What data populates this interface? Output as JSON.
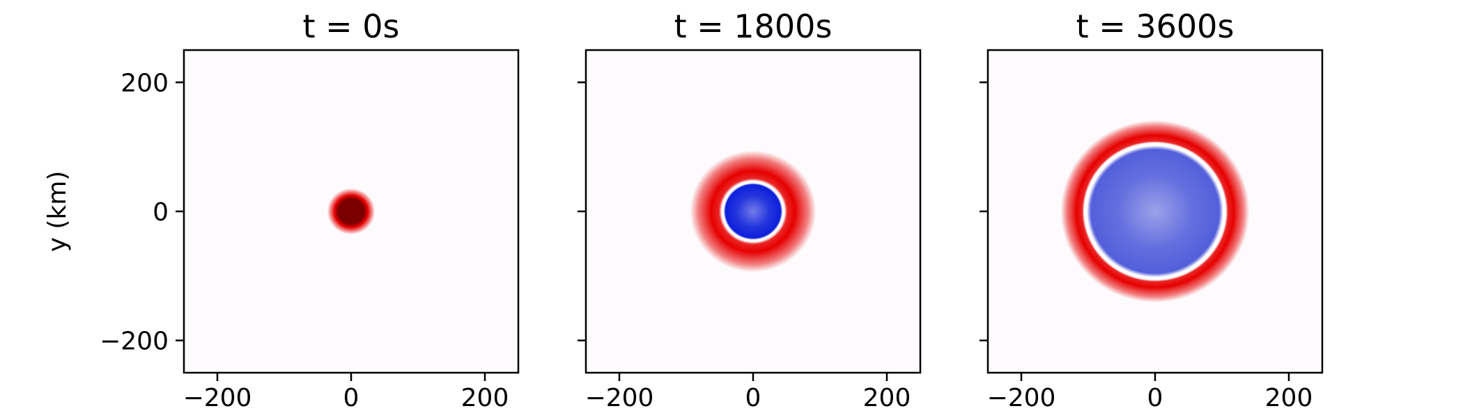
{
  "chart_data": [
    {
      "type": "heatmap",
      "title": "t = 0s",
      "ylabel": "y (km)",
      "xlim": [
        -250,
        250
      ],
      "ylim": [
        -250,
        250
      ],
      "xticks": [
        -200,
        0,
        200
      ],
      "yticks": [
        -200,
        0,
        200
      ],
      "xtick_labels": [
        "−200",
        "0",
        "200"
      ],
      "ytick_labels": [
        "200",
        "0",
        "−200"
      ],
      "show_ytick_labels": true,
      "center": [
        0,
        0
      ],
      "rings": [
        {
          "inner_radius_km": 0,
          "outer_radius_km": 32,
          "sign": "positive",
          "peak_color": "#7a0000"
        }
      ]
    },
    {
      "type": "heatmap",
      "title": "t = 1800s",
      "xlim": [
        -250,
        250
      ],
      "ylim": [
        -250,
        250
      ],
      "xticks": [
        -200,
        0,
        200
      ],
      "yticks": [
        -200,
        0,
        200
      ],
      "xtick_labels": [
        "−200",
        "0",
        "200"
      ],
      "show_ytick_labels": false,
      "center": [
        0,
        0
      ],
      "rings": [
        {
          "inner_radius_km": 0,
          "outer_radius_km": 44,
          "sign": "negative",
          "peak_color": "#0014d8"
        },
        {
          "inner_radius_km": 47,
          "outer_radius_km": 82,
          "sign": "positive",
          "peak_color": "#e60000"
        }
      ]
    },
    {
      "type": "heatmap",
      "title": "t = 3600s",
      "xlim": [
        -250,
        250
      ],
      "ylim": [
        -250,
        250
      ],
      "xticks": [
        -200,
        0,
        200
      ],
      "yticks": [
        -200,
        0,
        200
      ],
      "xtick_labels": [
        "−200",
        "0",
        "200"
      ],
      "show_ytick_labels": false,
      "center": [
        0,
        0
      ],
      "rings": [
        {
          "inner_radius_km": 0,
          "outer_radius_km": 102,
          "sign": "negative",
          "peak_color": "#4a57d9"
        },
        {
          "inner_radius_km": 106,
          "outer_radius_km": 132,
          "sign": "positive",
          "peak_color": "#e60000"
        }
      ]
    }
  ],
  "colors": {
    "background": "#fdfbfd",
    "positive_peak": "#e60000",
    "negative_peak": "#0014d8",
    "frame": "#000000"
  }
}
